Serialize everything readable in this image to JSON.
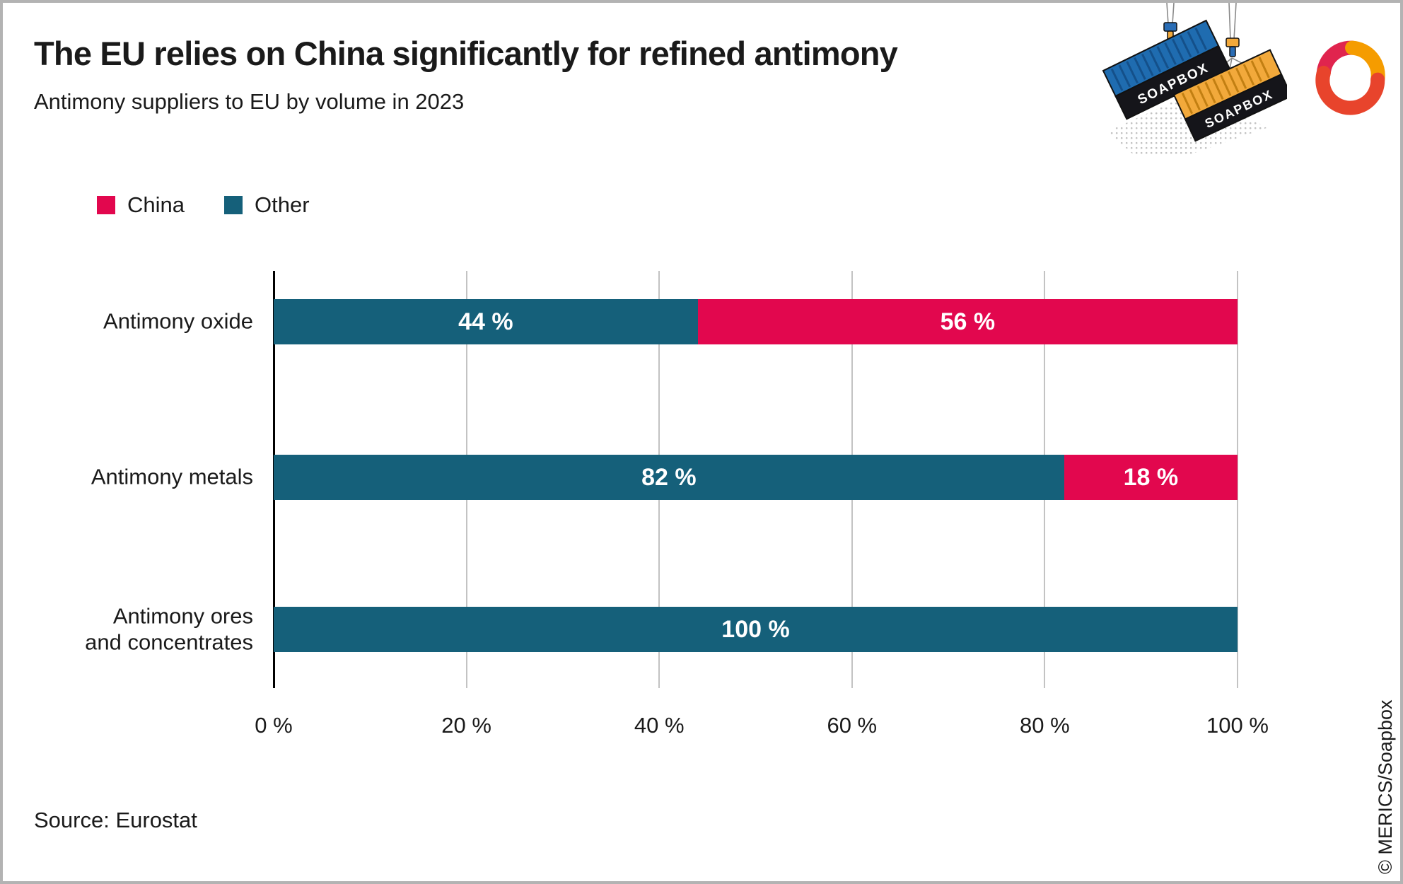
{
  "header": {
    "title": "The EU relies on China significantly for refined antimony",
    "subtitle": "Antimony suppliers to EU by volume in 2023"
  },
  "legend": {
    "items": [
      {
        "label": "China",
        "color": "#e2074e"
      },
      {
        "label": "Other",
        "color": "#15607a"
      }
    ]
  },
  "chart_data": {
    "type": "bar",
    "orientation": "horizontal",
    "stacked": true,
    "title": "Antimony suppliers to EU by volume in 2023",
    "categories": [
      "Antimony oxide",
      "Antimony metals",
      "Antimony ores and concentrates"
    ],
    "categories_display": [
      "Antimony oxide",
      "Antimony metals",
      "Antimony ores\nand concentrates"
    ],
    "series": [
      {
        "name": "Other",
        "color": "#15607a",
        "values": [
          44,
          82,
          100
        ],
        "labels": [
          "44 %",
          "82 %",
          "100 %"
        ]
      },
      {
        "name": "China",
        "color": "#e2074e",
        "values": [
          56,
          18,
          0
        ],
        "labels": [
          "56 %",
          "18 %",
          ""
        ]
      }
    ],
    "xlim": [
      0,
      100
    ],
    "x_ticks": [
      {
        "value": 0,
        "label": "0 %"
      },
      {
        "value": 20,
        "label": "20 %"
      },
      {
        "value": 40,
        "label": "40 %"
      },
      {
        "value": 60,
        "label": "60 %"
      },
      {
        "value": 80,
        "label": "80 %"
      },
      {
        "value": 100,
        "label": "100 %"
      }
    ],
    "grid": "vertical",
    "legend_position": "top-left"
  },
  "footer": {
    "source": "Source: Eurostat",
    "credit": "© MERICS/Soapbox"
  },
  "illustration": {
    "container_label": "SOAPBOX"
  },
  "colors": {
    "china": "#e2074e",
    "other": "#15607a",
    "gridline": "#c3c3c3",
    "axis": "#000000",
    "frame_border": "#b3b3b3",
    "text": "#1a1a1a"
  }
}
